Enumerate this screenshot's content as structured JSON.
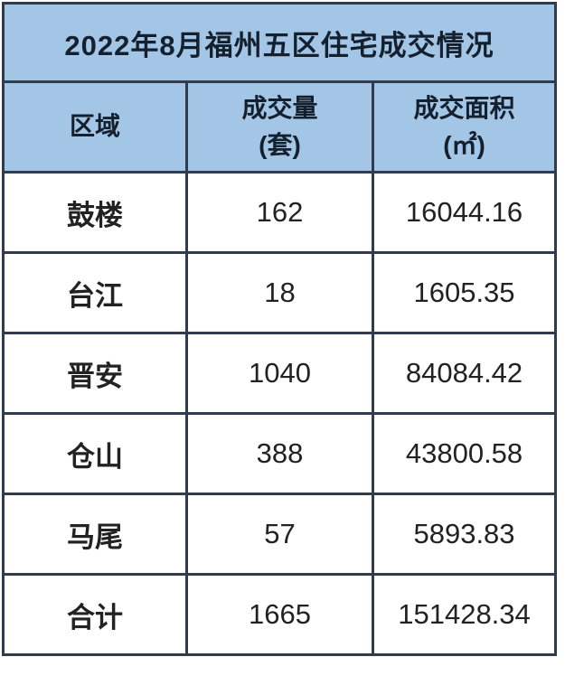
{
  "title": "2022年8月福州五区住宅成交情况",
  "colors": {
    "header_bg": "#a3c5e6",
    "border": "#303c4d",
    "text": "#1f1f1f",
    "background": "#ffffff"
  },
  "table": {
    "headers": {
      "district": "区域",
      "volume_line1": "成交量",
      "volume_line2": "(套)",
      "area_line1": "成交面积",
      "area_line2": "(㎡)"
    },
    "rows": [
      {
        "district": "鼓楼",
        "volume": "162",
        "area": "16044.16"
      },
      {
        "district": "台江",
        "volume": "18",
        "area": "1605.35"
      },
      {
        "district": "晋安",
        "volume": "1040",
        "area": "84084.42"
      },
      {
        "district": "仓山",
        "volume": "388",
        "area": "43800.58"
      },
      {
        "district": "马尾",
        "volume": "57",
        "area": "5893.83"
      },
      {
        "district": "合计",
        "volume": "1665",
        "area": "151428.34"
      }
    ]
  },
  "chart_data": {
    "type": "table",
    "title": "2022年8月福州五区住宅成交情况",
    "columns": [
      "区域",
      "成交量(套)",
      "成交面积(㎡)"
    ],
    "rows": [
      [
        "鼓楼",
        162,
        16044.16
      ],
      [
        "台江",
        18,
        1605.35
      ],
      [
        "晋安",
        1040,
        84084.42
      ],
      [
        "仓山",
        388,
        43800.58
      ],
      [
        "马尾",
        57,
        5893.83
      ],
      [
        "合计",
        1665,
        151428.34
      ]
    ]
  }
}
